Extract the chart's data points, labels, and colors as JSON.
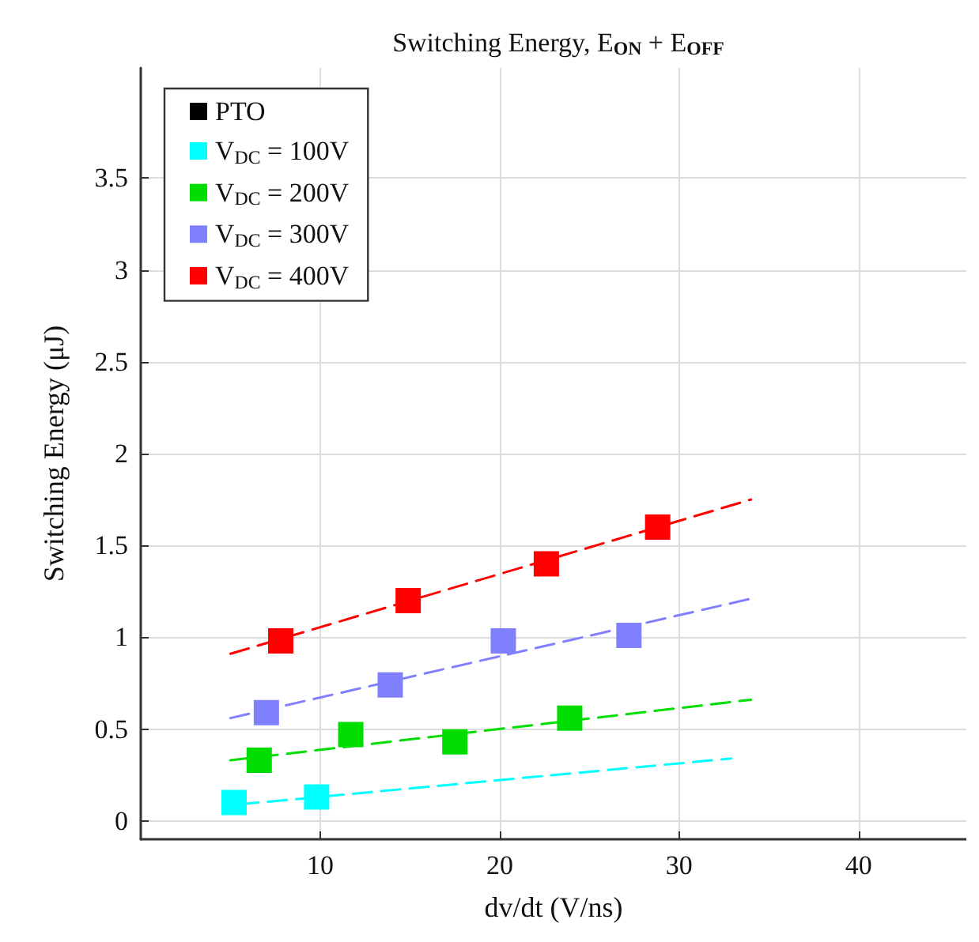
{
  "chart_data": {
    "type": "scatter",
    "title": "Switching Energy, E$_{ON}$ + E$_{OFF}$",
    "xlabel": "dv/dt (V/ns)",
    "ylabel": "Switching Energy (μJ)",
    "xlim": [
      0,
      46
    ],
    "ylim": [
      -0.1,
      4.1
    ],
    "xticks": [
      10,
      20,
      30,
      40
    ],
    "yticks": [
      0,
      0.5,
      1,
      1.5,
      2,
      2.5,
      3,
      3.5
    ],
    "grid": true,
    "legend": "top left",
    "marker": "square",
    "series": [
      {
        "name": "PTO",
        "color": "#000000"
      },
      {
        "name": "V$_{DC}$ = 100V",
        "color": "#00ffff",
        "x": [
          5.2,
          9.8
        ],
        "values": [
          0.1,
          0.13
        ]
      },
      {
        "name": "V$_{DC}$ = 200V",
        "color": "#00dd00",
        "x": [
          6.6,
          11.7,
          17.5,
          23.9
        ],
        "values": [
          0.33,
          0.47,
          0.43,
          0.56
        ]
      },
      {
        "name": "V$_{DC}$ = 300V",
        "color": "#8080ff",
        "x": [
          7.0,
          13.9,
          20.2,
          27.2
        ],
        "values": [
          0.59,
          0.74,
          0.98,
          1.01
        ]
      },
      {
        "name": "V$_{DC}$ = 400V",
        "color": "#ff0000",
        "x": [
          7.8,
          14.9,
          22.6,
          28.8
        ],
        "values": [
          0.98,
          1.2,
          1.4,
          1.6
        ]
      },
      {
        "type": "line",
        "color": "#00ffff",
        "x": [
          5.5,
          32.9
        ],
        "values": [
          0.09,
          0.34
        ],
        "line_style": "dashed",
        "marker": "none"
      },
      {
        "type": "line",
        "color": "#00dd00",
        "x": [
          5.0,
          34.0
        ],
        "values": [
          0.33,
          0.66
        ],
        "line_style": "dashed",
        "marker": "none"
      },
      {
        "type": "line",
        "color": "#8080ff",
        "x": [
          5.0,
          34.0
        ],
        "values": [
          0.56,
          1.21
        ],
        "line_style": "dashed",
        "marker": "none"
      },
      {
        "type": "line",
        "color": "#ff0000",
        "x": [
          5.0,
          34.0
        ],
        "values": [
          0.91,
          1.75
        ],
        "line_style": "dashed",
        "marker": "none"
      }
    ]
  }
}
